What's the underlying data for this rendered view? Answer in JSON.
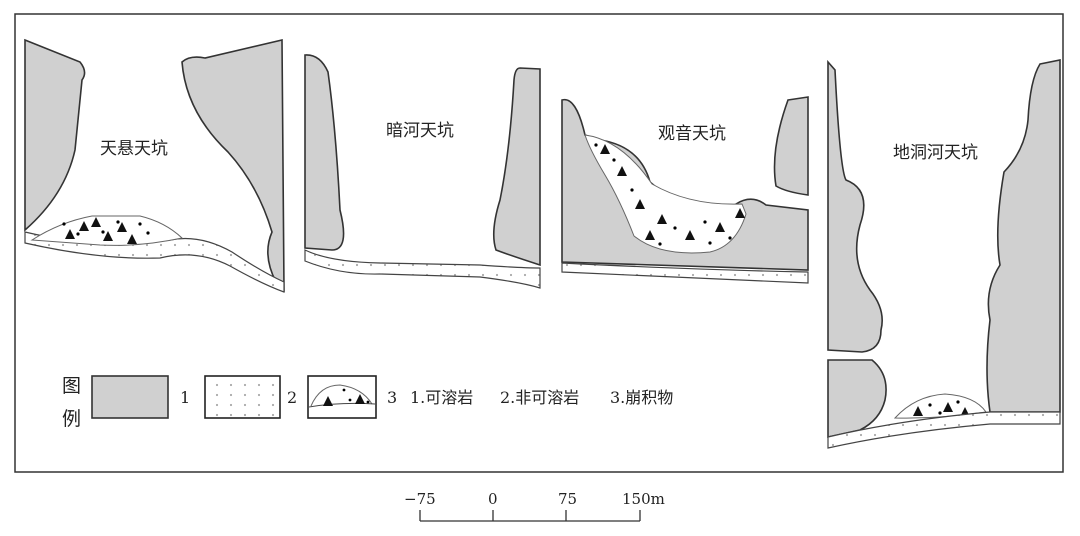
{
  "panels": [
    {
      "label": "天悬天坑"
    },
    {
      "label": "暗河天坑"
    },
    {
      "label": "观音天坑"
    },
    {
      "label": "地洞河天坑"
    }
  ],
  "legend": {
    "title_line1": "图",
    "title_line2": "例",
    "items": [
      {
        "number": "1",
        "text": "1.可溶岩",
        "swatch": "soluble-rock",
        "color": "#d0d0d0"
      },
      {
        "number": "2",
        "text": "2.非可溶岩",
        "swatch": "non-soluble-rock-dots"
      },
      {
        "number": "3",
        "text": "3.崩积物",
        "swatch": "colluvium-triangles-dots"
      }
    ]
  },
  "scale_bar": {
    "ticks": [
      "−75",
      "0",
      "75",
      "150m"
    ]
  }
}
